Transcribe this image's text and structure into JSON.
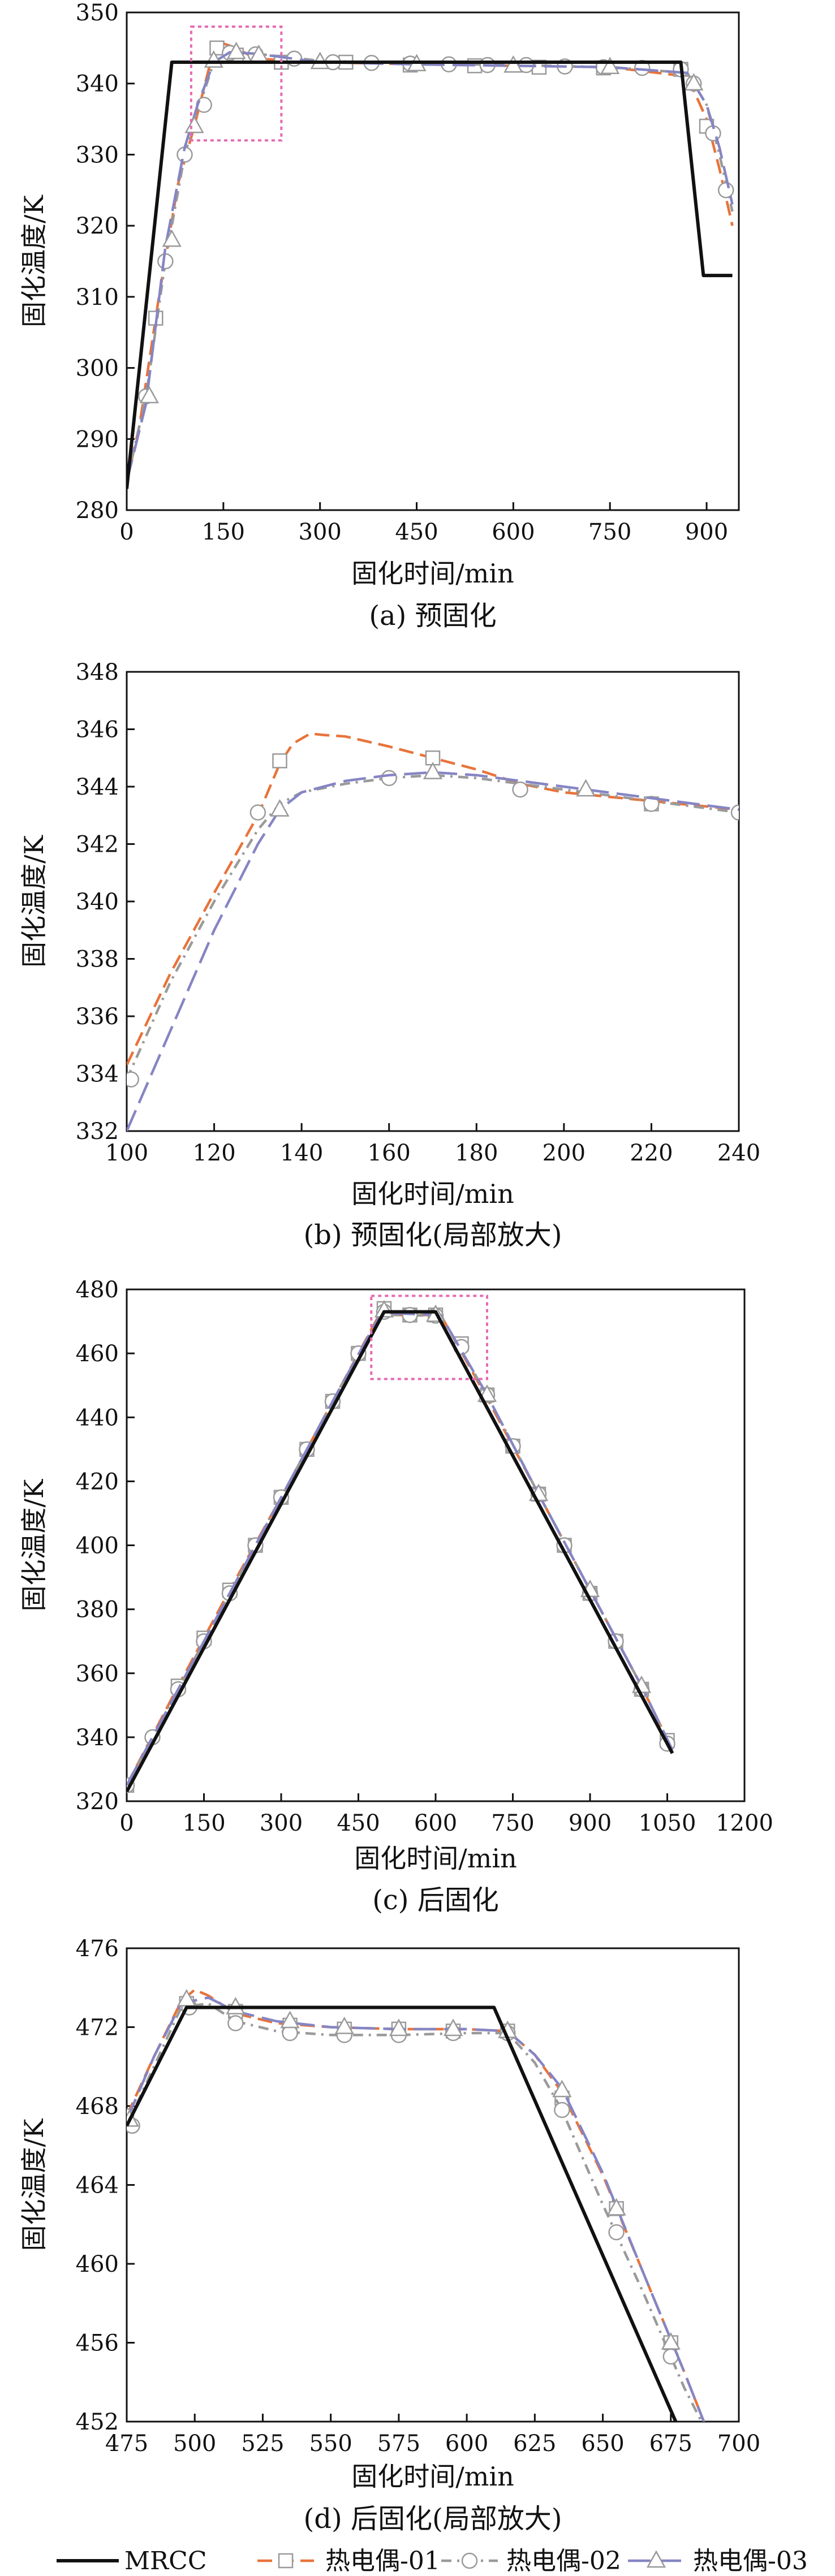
{
  "legend": [
    {
      "name": "MRCC",
      "color": "#111111",
      "dash": "solid",
      "marker": "none"
    },
    {
      "name": "热电偶-01",
      "color": "#e8733a",
      "dash": "dash",
      "marker": "square"
    },
    {
      "name": "热电偶-02",
      "color": "#9a9a9a",
      "dash": "dashdot",
      "marker": "circle"
    },
    {
      "name": "热电偶-03",
      "color": "#8585c4",
      "dash": "longdash",
      "marker": "triangle"
    }
  ],
  "chart_data": [
    {
      "id": "a",
      "type": "line",
      "caption": "(a) 预固化",
      "xlabel": "固化时间/min",
      "ylabel": "固化温度/K",
      "xlim": [
        0,
        950
      ],
      "ylim": [
        280,
        350
      ],
      "xticks": [
        0,
        150,
        300,
        450,
        600,
        750,
        900
      ],
      "yticks": [
        280,
        290,
        300,
        310,
        320,
        330,
        340,
        350
      ],
      "zoom_box": {
        "x": [
          100,
          240
        ],
        "y": [
          332,
          348
        ]
      },
      "series": [
        {
          "legend": 0,
          "x": [
            0,
            70,
            860,
            895,
            940
          ],
          "y": [
            283,
            343,
            343,
            313,
            313
          ]
        },
        {
          "legend": 1,
          "x": [
            0,
            20,
            50,
            80,
            105,
            130,
            145,
            170,
            200,
            300,
            450,
            600,
            750,
            870,
            900,
            920,
            940
          ],
          "y": [
            284,
            292,
            310,
            326,
            334,
            343,
            345.8,
            345,
            343.5,
            343,
            342.7,
            342.5,
            342.3,
            341,
            335,
            328,
            320
          ],
          "mx": [
            45,
            140,
            170,
            240,
            340,
            440,
            540,
            640,
            740,
            860,
            900
          ],
          "my": [
            307,
            345,
            344,
            343,
            343,
            342.6,
            342.5,
            342.3,
            342.2,
            342,
            334
          ]
        },
        {
          "legend": 2,
          "x": [
            0,
            30,
            60,
            90,
            110,
            135,
            160,
            200,
            300,
            450,
            600,
            750,
            870,
            900,
            920,
            940
          ],
          "y": [
            284,
            296,
            315,
            330,
            336,
            343,
            344.4,
            344.2,
            343.2,
            342.8,
            342.6,
            342.3,
            341.5,
            337,
            330,
            322
          ],
          "mx": [
            30,
            60,
            90,
            120,
            160,
            200,
            260,
            320,
            380,
            440,
            500,
            560,
            620,
            680,
            740,
            800,
            860,
            880,
            910,
            930
          ],
          "my": [
            296,
            315,
            330,
            337,
            344.3,
            344.1,
            343.5,
            343,
            342.9,
            342.8,
            342.7,
            342.6,
            342.6,
            342.4,
            342.3,
            342.2,
            342,
            340,
            333,
            325
          ]
        },
        {
          "legend": 3,
          "x": [
            0,
            30,
            60,
            90,
            110,
            135,
            160,
            200,
            300,
            450,
            600,
            750,
            870,
            900,
            920,
            940
          ],
          "y": [
            284,
            295,
            317,
            331,
            337,
            343,
            344.4,
            344.2,
            343,
            342.7,
            342.5,
            342.3,
            341.5,
            337,
            331,
            323
          ],
          "mx": [
            35,
            70,
            105,
            135,
            170,
            205,
            300,
            450,
            600,
            750,
            880
          ],
          "my": [
            296,
            318,
            334,
            343.2,
            344.4,
            344,
            343,
            342.7,
            342.5,
            342.3,
            340
          ]
        }
      ]
    },
    {
      "id": "b",
      "type": "line",
      "caption": "(b) 预固化(局部放大)",
      "xlabel": "固化时间/min",
      "ylabel": "固化温度/K",
      "xlim": [
        100,
        240
      ],
      "ylim": [
        332,
        348
      ],
      "xticks": [
        100,
        120,
        140,
        160,
        180,
        200,
        220,
        240
      ],
      "yticks": [
        332,
        334,
        336,
        338,
        340,
        342,
        344,
        346,
        348
      ],
      "series": [
        {
          "legend": 1,
          "x": [
            100,
            110,
            120,
            130,
            135,
            138,
            142,
            145,
            150,
            160,
            170,
            180,
            190,
            200,
            220,
            240
          ],
          "y": [
            334.3,
            337.5,
            340.3,
            343,
            344.8,
            345.5,
            345.85,
            345.8,
            345.75,
            345.4,
            345,
            344.6,
            344.1,
            343.8,
            343.5,
            343.2
          ],
          "mx": [
            135,
            170,
            220
          ],
          "my": [
            344.9,
            345,
            343.4
          ]
        },
        {
          "legend": 2,
          "x": [
            100,
            110,
            120,
            130,
            135,
            140,
            150,
            160,
            170,
            180,
            190,
            200,
            210,
            220,
            230,
            240
          ],
          "y": [
            333.8,
            337.2,
            340,
            342.5,
            343.4,
            343.8,
            344.1,
            344.3,
            344.4,
            344.3,
            344.1,
            343.9,
            343.7,
            343.5,
            343.3,
            343.1
          ],
          "mx": [
            101,
            130,
            160,
            190,
            220,
            240
          ],
          "my": [
            333.8,
            343.1,
            344.3,
            343.9,
            343.4,
            343.1
          ]
        },
        {
          "legend": 3,
          "x": [
            100,
            110,
            120,
            130,
            135,
            140,
            150,
            160,
            170,
            180,
            190,
            200,
            210,
            220,
            230,
            240
          ],
          "y": [
            332,
            335.5,
            339,
            342,
            343.2,
            343.8,
            344.2,
            344.4,
            344.5,
            344.4,
            344.2,
            344,
            343.8,
            343.6,
            343.4,
            343.2
          ],
          "mx": [
            135,
            170,
            205
          ],
          "my": [
            343.2,
            344.5,
            343.9
          ]
        }
      ]
    },
    {
      "id": "c",
      "type": "line",
      "caption": "(c) 后固化",
      "xlabel": "固化时间/min",
      "ylabel": "固化温度/K",
      "xlim": [
        0,
        1200
      ],
      "ylim": [
        320,
        480
      ],
      "xticks": [
        0,
        150,
        300,
        450,
        600,
        750,
        900,
        1050,
        1200
      ],
      "yticks": [
        320,
        340,
        360,
        380,
        400,
        420,
        440,
        460,
        480
      ],
      "zoom_box": {
        "x": [
          475,
          700
        ],
        "y": [
          452,
          478
        ]
      },
      "series": [
        {
          "legend": 0,
          "x": [
            0,
            500,
            600,
            1060
          ],
          "y": [
            323,
            473,
            473,
            335
          ]
        },
        {
          "legend": 1,
          "x": [
            0,
            100,
            200,
            300,
            400,
            497,
            520,
            610,
            700,
            800,
            900,
            1000,
            1060
          ],
          "y": [
            325,
            356,
            386,
            415,
            445,
            474,
            472,
            472,
            446,
            416,
            386,
            356,
            336
          ],
          "mx": [
            0,
            100,
            150,
            200,
            250,
            300,
            350,
            400,
            450,
            500,
            550,
            600,
            650,
            700,
            750,
            800,
            850,
            900,
            950,
            1000,
            1050
          ],
          "my": [
            325,
            356,
            371,
            386,
            400,
            415,
            430,
            445,
            460,
            474,
            472,
            472,
            463,
            447,
            431,
            416,
            400,
            385,
            370,
            355,
            339
          ]
        },
        {
          "legend": 2,
          "x": [
            0,
            100,
            200,
            300,
            400,
            497,
            520,
            610,
            700,
            800,
            900,
            1000,
            1060
          ],
          "y": [
            325,
            355,
            385,
            415,
            445,
            473.3,
            472,
            471.8,
            447,
            416,
            386,
            356,
            336
          ],
          "mx": [
            0,
            50,
            100,
            150,
            200,
            250,
            300,
            350,
            400,
            450,
            500,
            550,
            600,
            650,
            700,
            750,
            800,
            850,
            900,
            950,
            1000,
            1050
          ],
          "my": [
            325,
            340,
            355,
            370,
            385,
            400,
            415,
            430,
            445,
            460,
            473,
            472,
            471.8,
            462,
            447,
            431,
            416,
            400,
            385,
            370,
            355,
            338
          ]
        },
        {
          "legend": 3,
          "x": [
            0,
            100,
            200,
            300,
            400,
            497,
            520,
            610,
            700,
            800,
            900,
            1000,
            1060
          ],
          "y": [
            325,
            355,
            385,
            415,
            445,
            473.5,
            472.5,
            472,
            447,
            416,
            386,
            356,
            336
          ],
          "mx": [
            500,
            600,
            700,
            800,
            900,
            1000
          ],
          "my": [
            473.4,
            472,
            447,
            416,
            386,
            356
          ]
        }
      ]
    },
    {
      "id": "d",
      "type": "line",
      "caption": "(d) 后固化(局部放大)",
      "xlabel": "固化时间/min",
      "ylabel": "固化温度/K",
      "xlim": [
        475,
        700
      ],
      "ylim": [
        452,
        476
      ],
      "xticks": [
        475,
        500,
        525,
        550,
        575,
        600,
        625,
        650,
        675,
        700
      ],
      "yticks": [
        452,
        456,
        460,
        464,
        468,
        472,
        476
      ],
      "series": [
        {
          "legend": 0,
          "x": [
            475,
            497,
            610,
            680
          ],
          "y": [
            467,
            473,
            473,
            451
          ]
        },
        {
          "legend": 1,
          "x": [
            475,
            485,
            495,
            500,
            505,
            515,
            530,
            550,
            575,
            600,
            615,
            625,
            635,
            650,
            665,
            680,
            690
          ],
          "y": [
            467.5,
            470.5,
            473.3,
            473.9,
            473.6,
            472.7,
            472.2,
            472,
            471.9,
            471.9,
            471.8,
            470.6,
            468.7,
            464.5,
            459.5,
            454.5,
            451
          ],
          "mx": [
            475,
            497,
            515,
            535,
            555,
            575,
            595,
            615,
            635,
            655,
            675
          ],
          "my": [
            467.5,
            473.2,
            472.8,
            472.1,
            471.9,
            471.9,
            471.8,
            471.8,
            468.4,
            462.8,
            456
          ]
        },
        {
          "legend": 2,
          "x": [
            475,
            485,
            495,
            505,
            515,
            530,
            550,
            575,
            600,
            615,
            625,
            635,
            650,
            665,
            680,
            690
          ],
          "y": [
            467,
            470,
            473,
            473.2,
            472.3,
            471.8,
            471.6,
            471.6,
            471.7,
            471.7,
            470.2,
            467.8,
            463,
            458.5,
            453.7,
            451
          ],
          "mx": [
            477,
            498,
            515,
            535,
            555,
            575,
            595,
            615,
            635,
            655,
            675
          ],
          "my": [
            467,
            473,
            472.2,
            471.7,
            471.6,
            471.6,
            471.7,
            471.7,
            467.8,
            461.6,
            455.3
          ]
        },
        {
          "legend": 3,
          "x": [
            475,
            485,
            495,
            505,
            515,
            530,
            550,
            575,
            600,
            615,
            625,
            635,
            650,
            665,
            680,
            690
          ],
          "y": [
            467.3,
            470.5,
            473.2,
            473.5,
            472.8,
            472.3,
            472,
            471.9,
            471.9,
            471.8,
            470.6,
            468.9,
            464.6,
            459.5,
            454.5,
            451
          ],
          "mx": [
            476,
            497,
            515,
            535,
            555,
            575,
            595,
            615,
            635,
            655,
            675
          ],
          "my": [
            467.3,
            473.4,
            473,
            472.3,
            472,
            471.9,
            471.9,
            471.8,
            468.8,
            462.8,
            456
          ]
        }
      ]
    }
  ]
}
